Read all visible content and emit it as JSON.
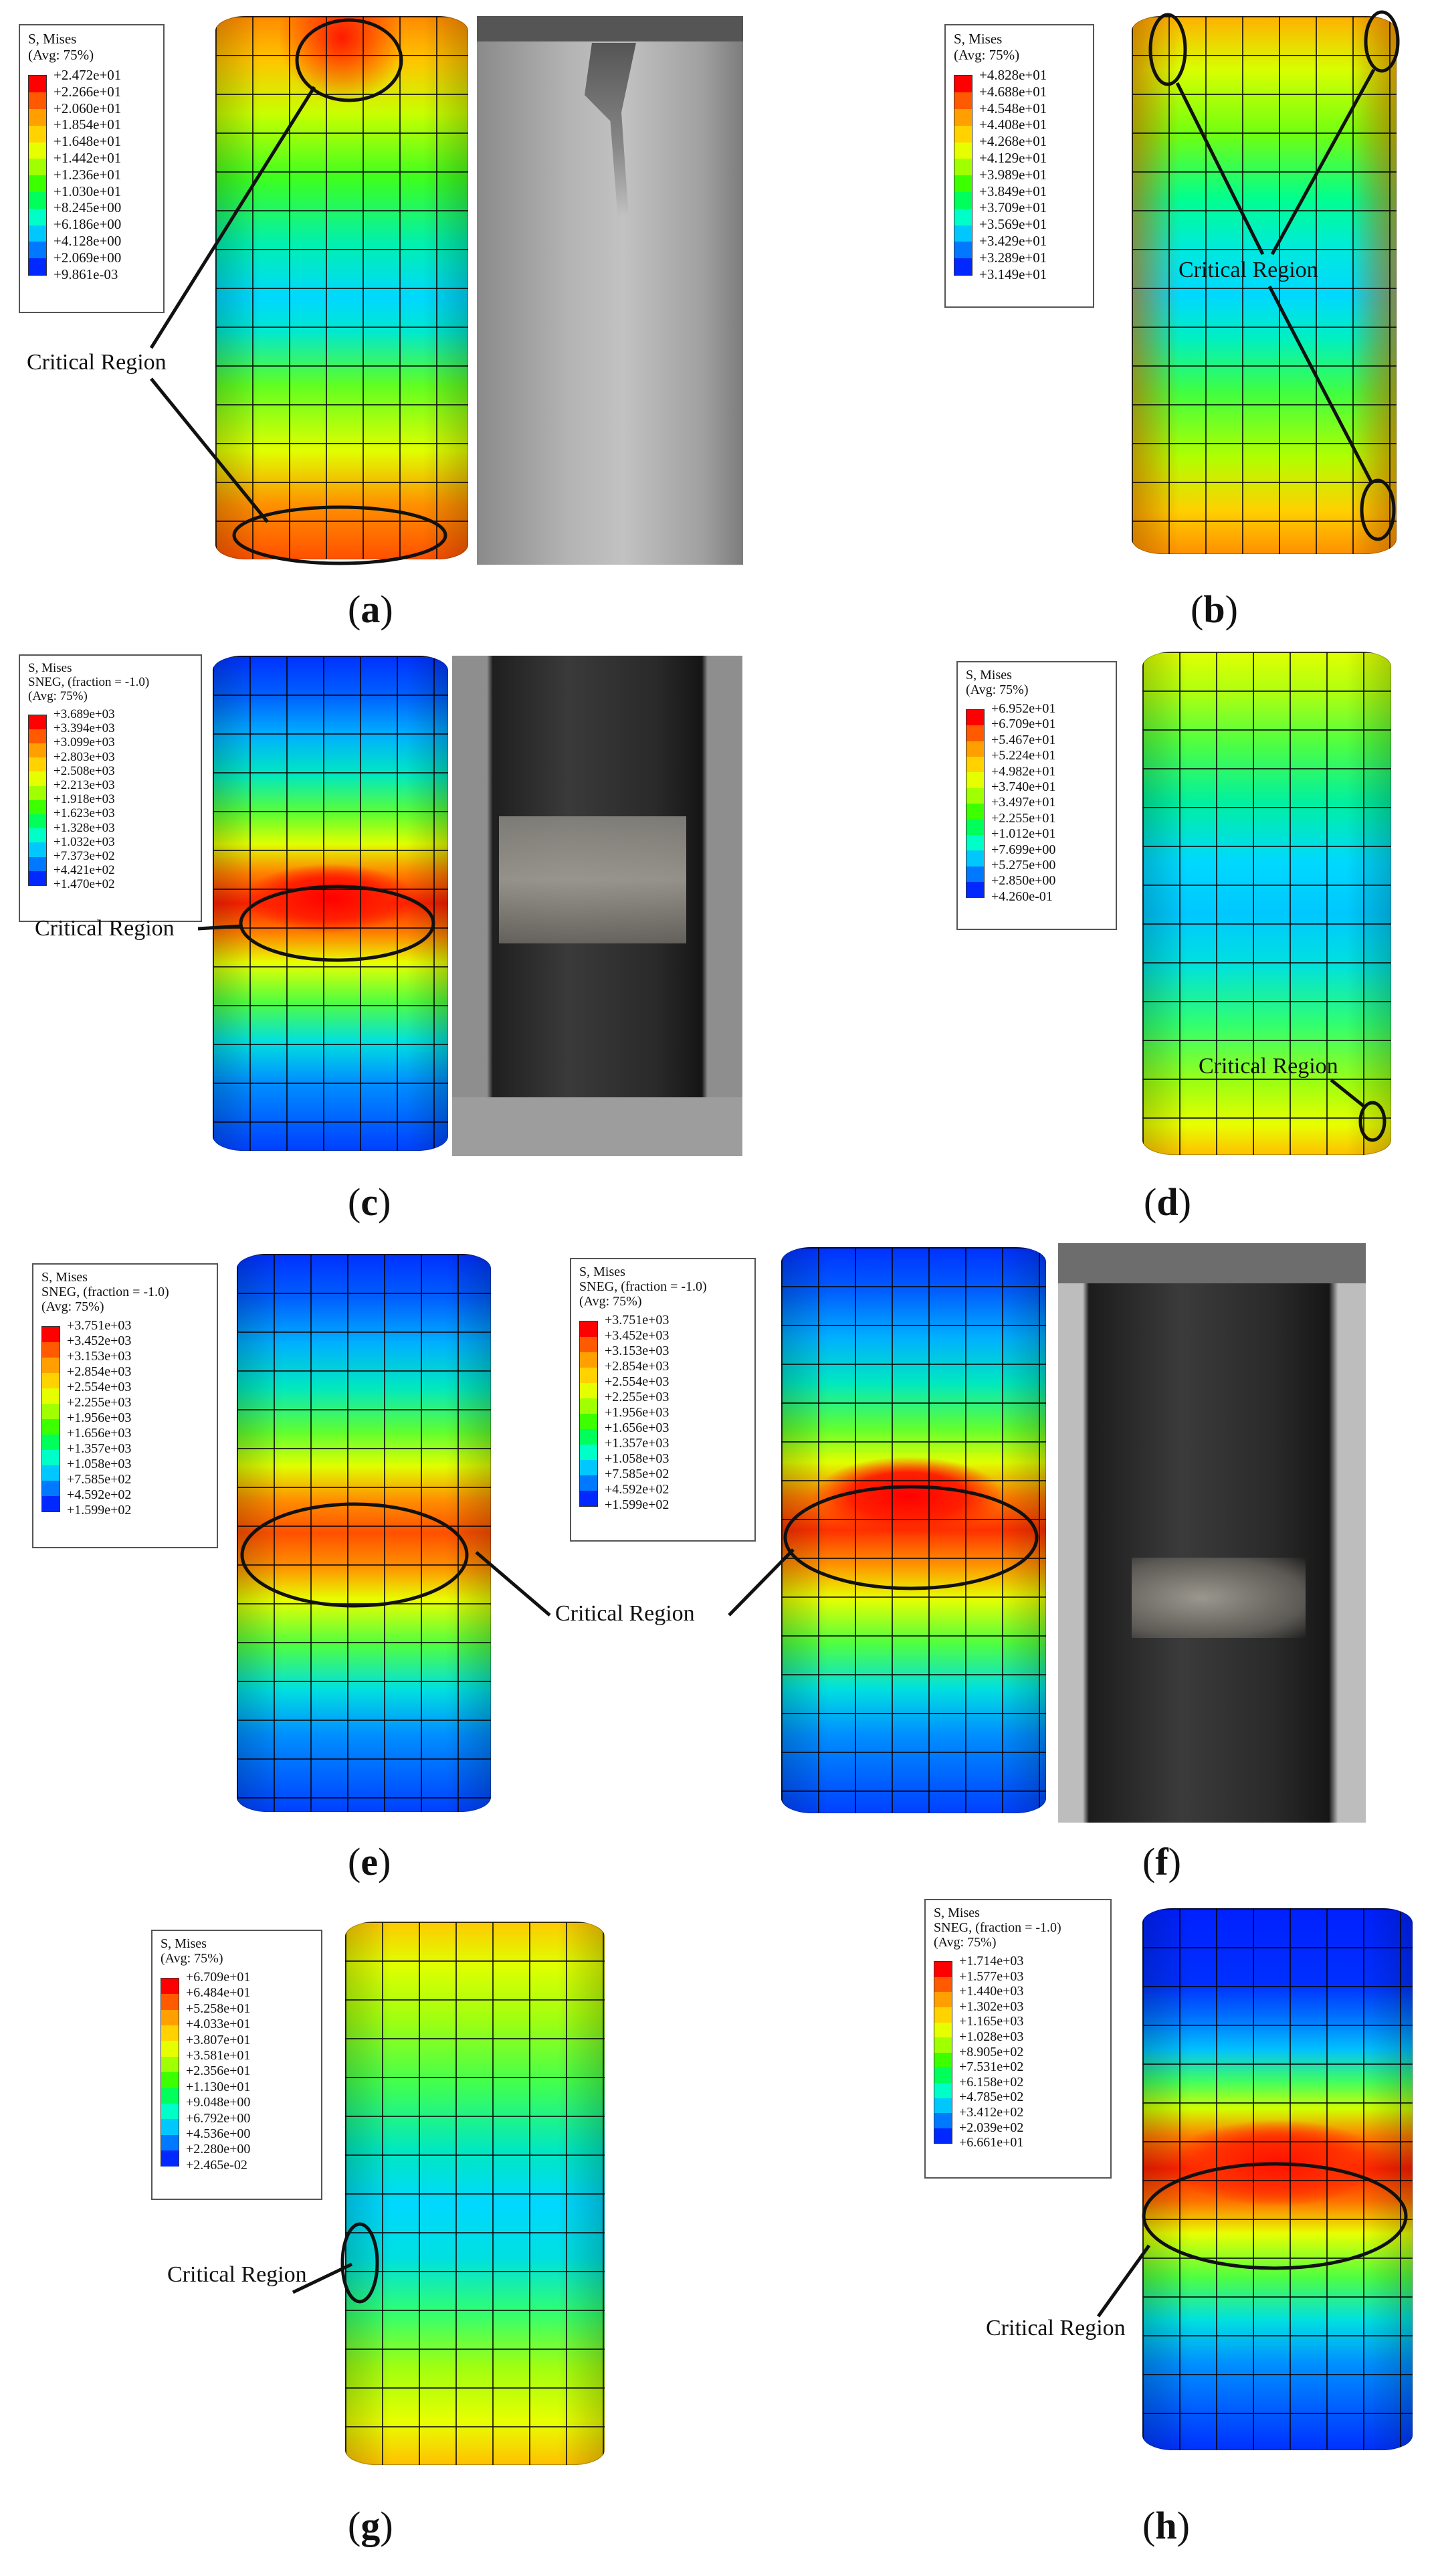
{
  "panels": [
    {
      "id": "a",
      "caption": "a",
      "legend": {
        "header": [
          "S, Mises",
          "(Avg: 75%)"
        ],
        "values": [
          "+2.472e+01",
          "+2.266e+01",
          "+2.060e+01",
          "+1.854e+01",
          "+1.648e+01",
          "+1.442e+01",
          "+1.236e+01",
          "+1.030e+01",
          "+8.245e+00",
          "+6.186e+00",
          "+4.128e+00",
          "+2.069e+00",
          "+9.861e-03"
        ]
      },
      "critical_label": "Critical Region"
    },
    {
      "id": "b",
      "caption": "b",
      "legend": {
        "header": [
          "S, Mises",
          "(Avg: 75%)"
        ],
        "values": [
          "+4.828e+01",
          "+4.688e+01",
          "+4.548e+01",
          "+4.408e+01",
          "+4.268e+01",
          "+4.129e+01",
          "+3.989e+01",
          "+3.849e+01",
          "+3.709e+01",
          "+3.569e+01",
          "+3.429e+01",
          "+3.289e+01",
          "+3.149e+01"
        ]
      },
      "critical_label": "Critical Region"
    },
    {
      "id": "c",
      "caption": "c",
      "legend": {
        "header": [
          "S, Mises",
          "SNEG, (fraction = -1.0)",
          "(Avg: 75%)"
        ],
        "values": [
          "+3.689e+03",
          "+3.394e+03",
          "+3.099e+03",
          "+2.803e+03",
          "+2.508e+03",
          "+2.213e+03",
          "+1.918e+03",
          "+1.623e+03",
          "+1.328e+03",
          "+1.032e+03",
          "+7.373e+02",
          "+4.421e+02",
          "+1.470e+02"
        ]
      },
      "critical_label": "Critical Region"
    },
    {
      "id": "d",
      "caption": "d",
      "legend": {
        "header": [
          "S, Mises",
          "(Avg: 75%)"
        ],
        "values": [
          "+6.952e+01",
          "+6.709e+01",
          "+5.467e+01",
          "+5.224e+01",
          "+4.982e+01",
          "+3.740e+01",
          "+3.497e+01",
          "+2.255e+01",
          "+1.012e+01",
          "+7.699e+00",
          "+5.275e+00",
          "+2.850e+00",
          "+4.260e-01"
        ]
      },
      "critical_label": "Critical Region"
    },
    {
      "id": "e",
      "caption": "e",
      "legend": {
        "header": [
          "S, Mises",
          "SNEG, (fraction = -1.0)",
          "(Avg: 75%)"
        ],
        "values": [
          "+3.751e+03",
          "+3.452e+03",
          "+3.153e+03",
          "+2.854e+03",
          "+2.554e+03",
          "+2.255e+03",
          "+1.956e+03",
          "+1.656e+03",
          "+1.357e+03",
          "+1.058e+03",
          "+7.585e+02",
          "+4.592e+02",
          "+1.599e+02"
        ]
      },
      "critical_label": "Critical Region"
    },
    {
      "id": "f",
      "caption": "f",
      "legend": {
        "header": [
          "S, Mises",
          "SNEG, (fraction = -1.0)",
          "(Avg: 75%)"
        ],
        "values": [
          "+3.751e+03",
          "+3.452e+03",
          "+3.153e+03",
          "+2.854e+03",
          "+2.554e+03",
          "+2.255e+03",
          "+1.956e+03",
          "+1.656e+03",
          "+1.357e+03",
          "+1.058e+03",
          "+7.585e+02",
          "+4.592e+02",
          "+1.599e+02"
        ]
      }
    },
    {
      "id": "g",
      "caption": "g",
      "legend": {
        "header": [
          "S, Mises",
          "(Avg: 75%)"
        ],
        "values": [
          "+6.709e+01",
          "+6.484e+01",
          "+5.258e+01",
          "+4.033e+01",
          "+3.807e+01",
          "+3.581e+01",
          "+2.356e+01",
          "+1.130e+01",
          "+9.048e+00",
          "+6.792e+00",
          "+4.536e+00",
          "+2.280e+00",
          "+2.465e-02"
        ]
      },
      "critical_label": "Critical Region"
    },
    {
      "id": "h",
      "caption": "h",
      "legend": {
        "header": [
          "S, Mises",
          "SNEG, (fraction = -1.0)",
          "(Avg: 75%)"
        ],
        "values": [
          "+1.714e+03",
          "+1.577e+03",
          "+1.440e+03",
          "+1.302e+03",
          "+1.165e+03",
          "+1.028e+03",
          "+8.905e+02",
          "+7.531e+02",
          "+6.158e+02",
          "+4.785e+02",
          "+3.412e+02",
          "+2.039e+02",
          "+6.661e+01"
        ]
      },
      "critical_label": "Critical Region"
    }
  ],
  "colors": {
    "contour_scale": [
      "#ff0000",
      "#ff5a00",
      "#ffa000",
      "#ffd200",
      "#e6ff00",
      "#a0ff00",
      "#3cff00",
      "#00ff5a",
      "#00ffc8",
      "#00c8ff",
      "#0078ff",
      "#0028ff",
      "#0000ff"
    ],
    "concrete_photo": "#a6a6a6",
    "cfrp_photo": "#2a2a2a"
  }
}
